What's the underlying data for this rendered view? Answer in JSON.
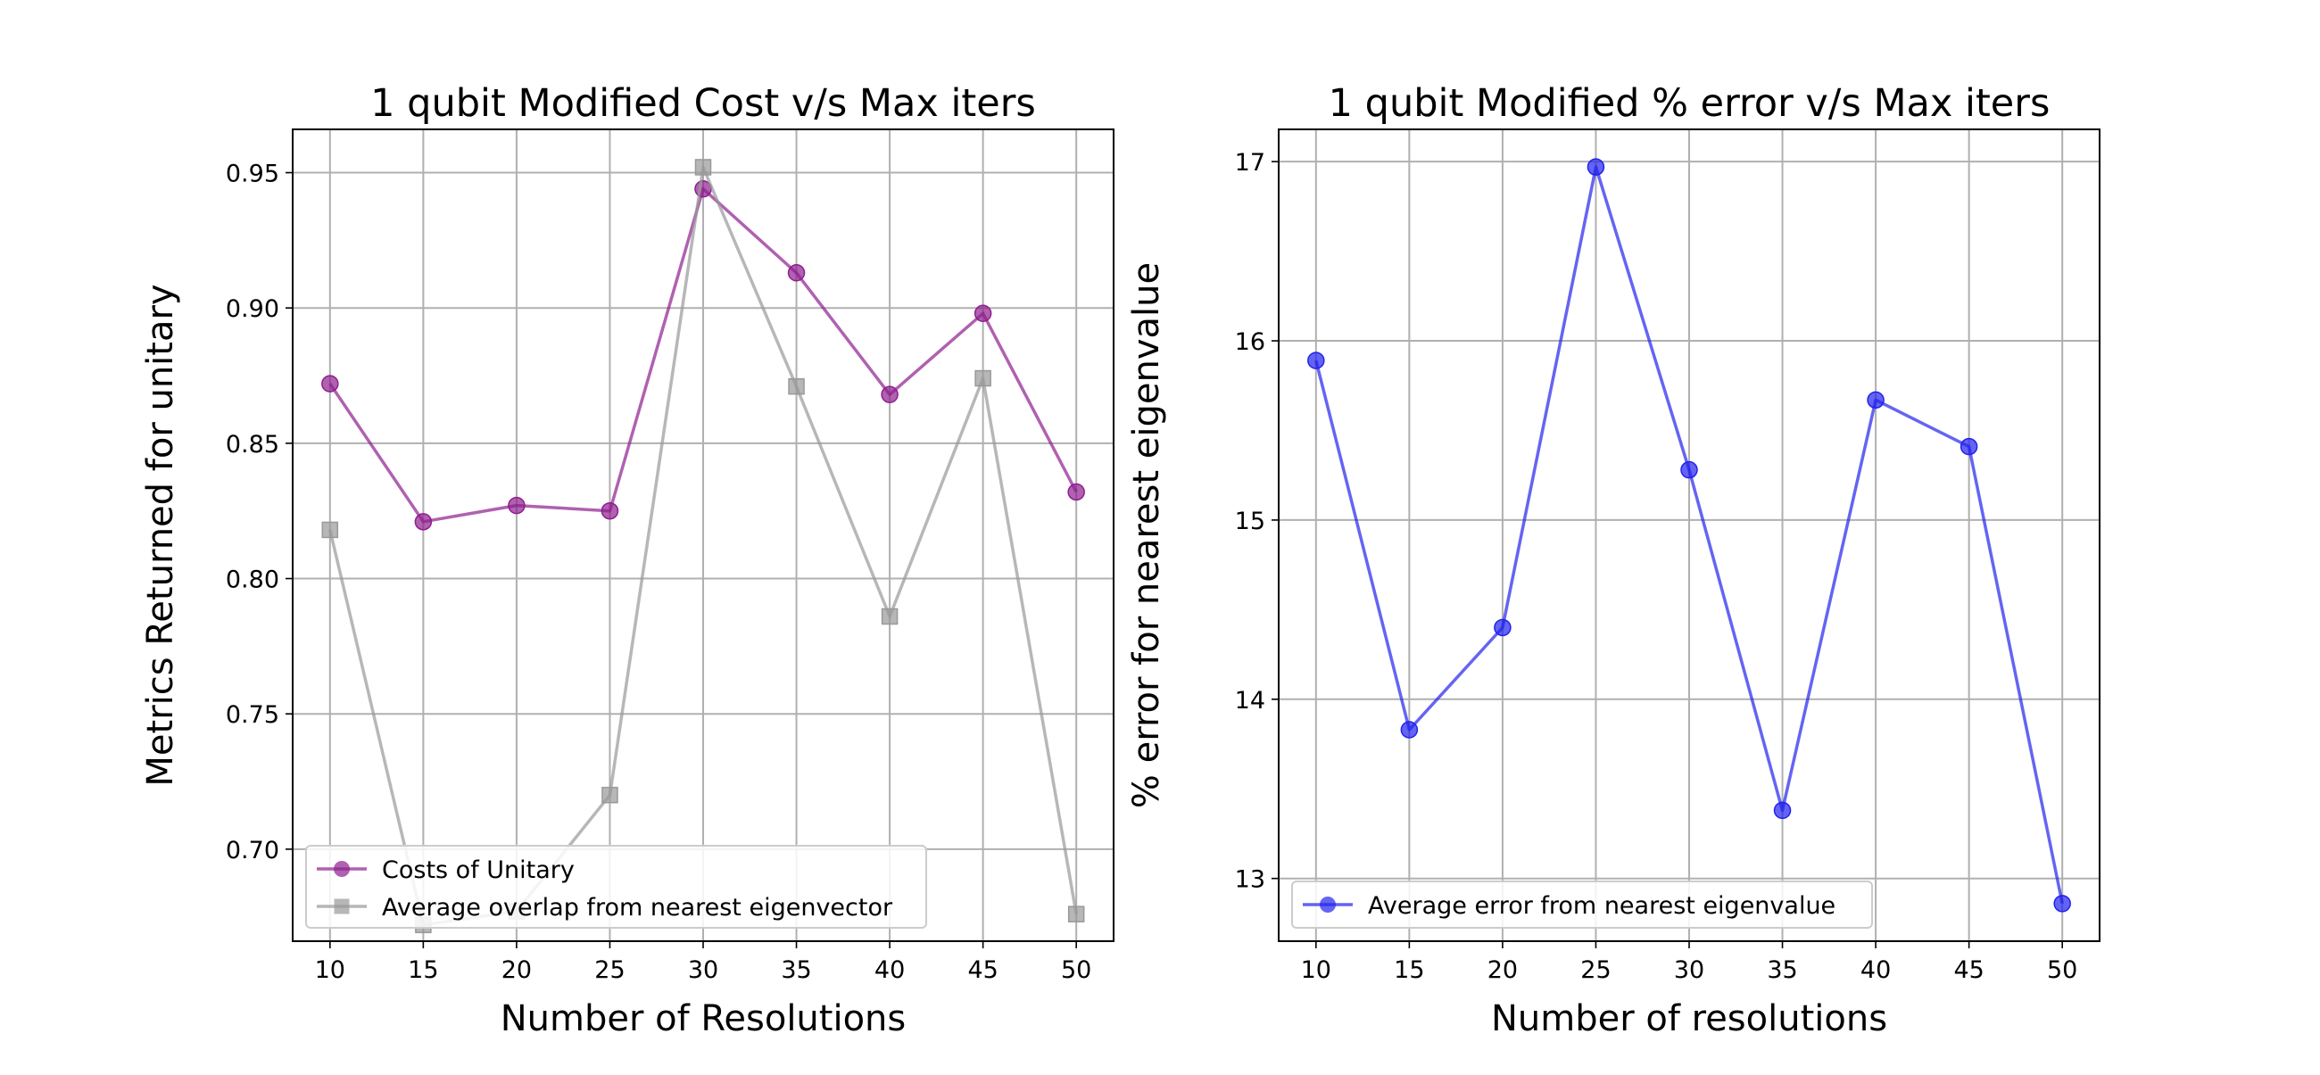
{
  "chart_data": [
    {
      "type": "line",
      "title": "1 qubit Modified Cost v/s Max iters",
      "xlabel": "Number of Resolutions",
      "ylabel": "Metrics Returned for unitary",
      "x": [
        10,
        15,
        20,
        25,
        30,
        35,
        40,
        45,
        50
      ],
      "xlim": [
        8,
        52
      ],
      "ylim": [
        0.666,
        0.966
      ],
      "xticks": [
        10,
        15,
        20,
        25,
        30,
        35,
        40,
        45,
        50
      ],
      "yticks": [
        0.7,
        0.75,
        0.8,
        0.85,
        0.9,
        0.95
      ],
      "ytick_labels": [
        "0.70",
        "0.75",
        "0.80",
        "0.85",
        "0.90",
        "0.95"
      ],
      "grid": true,
      "legend_position": "lower-left",
      "series": [
        {
          "name": "Costs of Unitary",
          "color": "#8e1e8e",
          "marker": "circle",
          "values": [
            0.872,
            0.821,
            0.827,
            0.825,
            0.944,
            0.913,
            0.868,
            0.898,
            0.832
          ]
        },
        {
          "name": "Average overlap from nearest eigenvector",
          "color": "#999999",
          "marker": "square",
          "values": [
            0.818,
            0.672,
            0.677,
            0.72,
            0.952,
            0.871,
            0.786,
            0.874,
            0.676
          ]
        }
      ]
    },
    {
      "type": "line",
      "title": "1 qubit Modified % error v/s Max iters",
      "xlabel": "Number of resolutions",
      "ylabel": "% error for nearest eigenvalue",
      "x": [
        10,
        15,
        20,
        25,
        30,
        35,
        40,
        45,
        50
      ],
      "xlim": [
        8,
        52
      ],
      "ylim": [
        12.65,
        17.18
      ],
      "xticks": [
        10,
        15,
        20,
        25,
        30,
        35,
        40,
        45,
        50
      ],
      "yticks": [
        13,
        14,
        15,
        16,
        17
      ],
      "ytick_labels": [
        "13",
        "14",
        "15",
        "16",
        "17"
      ],
      "grid": true,
      "legend_position": "lower-left",
      "series": [
        {
          "name": "Average error from nearest eigenvalue",
          "color": "#2222ee",
          "marker": "circle",
          "values": [
            15.89,
            13.83,
            14.4,
            16.97,
            15.28,
            13.38,
            15.67,
            15.41,
            12.86
          ]
        }
      ]
    }
  ]
}
